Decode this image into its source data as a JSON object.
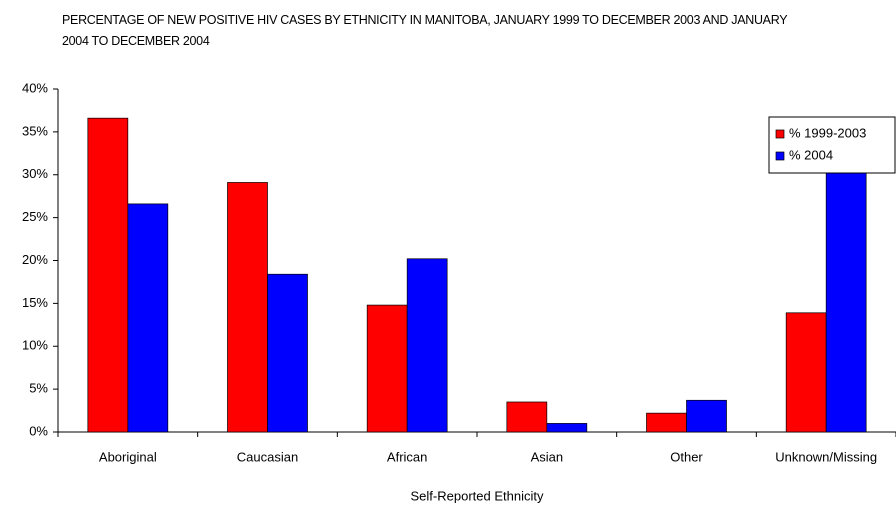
{
  "chart_data": {
    "type": "bar",
    "title": "PERCENTAGE OF NEW POSITIVE HIV CASES BY ETHNICITY IN MANITOBA, JANUARY 1999 TO DECEMBER 2003 AND JANUARY 2004 TO DECEMBER 2004",
    "x_label": "Self-Reported Ethnicity",
    "categories": [
      "Aboriginal",
      "Caucasian",
      "African",
      "Asian",
      "Other",
      "Unknown/Missing"
    ],
    "series": [
      {
        "name": "% 1999-2003",
        "color": "#ff0000",
        "values": [
          36.6,
          29.1,
          14.8,
          3.5,
          2.2,
          13.9
        ]
      },
      {
        "name": "% 2004",
        "color": "#0000ff",
        "values": [
          26.6,
          18.4,
          20.2,
          1.0,
          3.7,
          30.4
        ]
      }
    ],
    "ylim": [
      0,
      40
    ],
    "yticks": [
      {
        "value": 0,
        "label": "0%"
      },
      {
        "value": 5,
        "label": "5%"
      },
      {
        "value": 10,
        "label": "10%"
      },
      {
        "value": 15,
        "label": "15%"
      },
      {
        "value": 20,
        "label": "20%"
      },
      {
        "value": 25,
        "label": "25%"
      },
      {
        "value": 30,
        "label": "30%"
      },
      {
        "value": 35,
        "label": "35%"
      },
      {
        "value": 40,
        "label": "40%"
      }
    ],
    "legend": "upper-right"
  }
}
